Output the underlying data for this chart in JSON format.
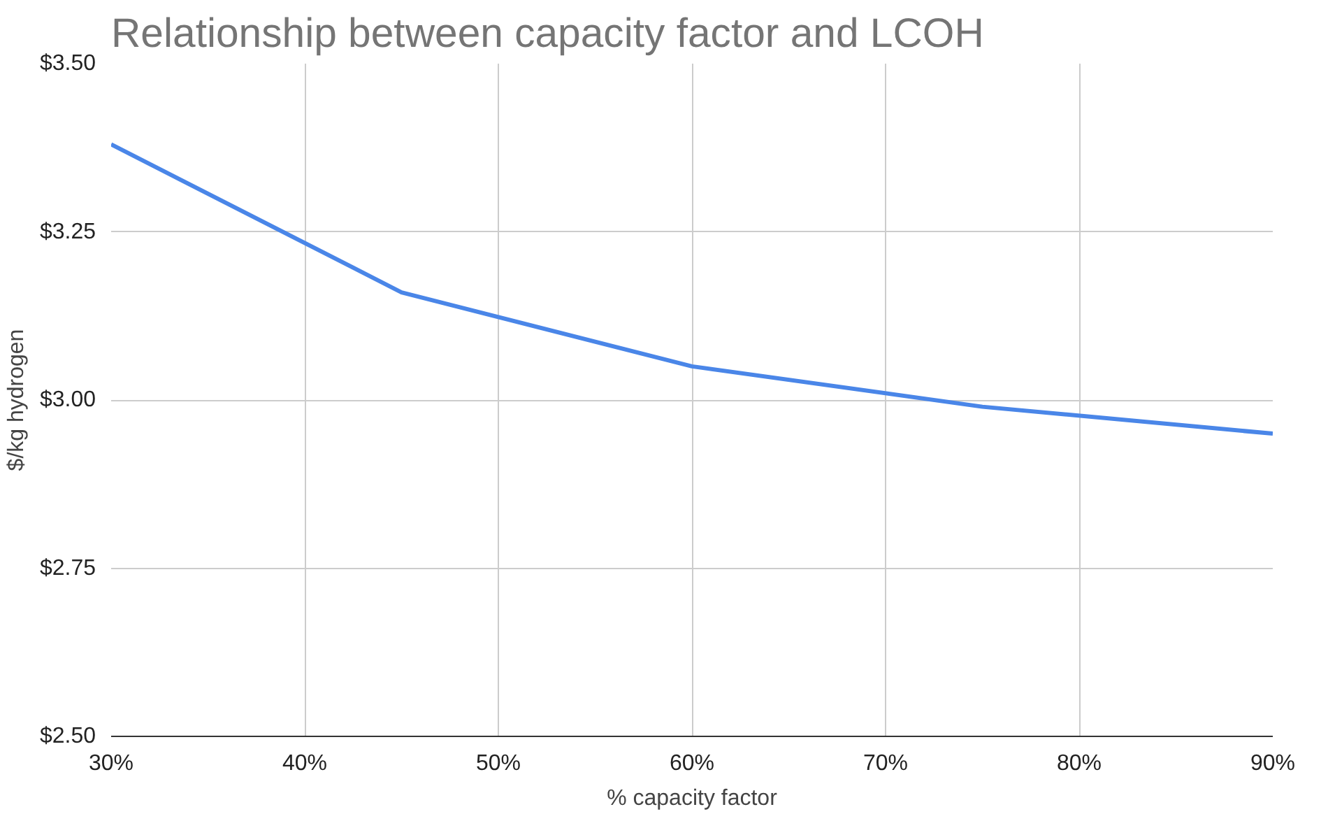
{
  "chart_data": {
    "type": "line",
    "title": "Relationship between capacity factor and LCOH",
    "xlabel": "% capacity factor",
    "ylabel": "$/kg hydrogen",
    "x": [
      30,
      45,
      60,
      75,
      90
    ],
    "series": [
      {
        "color": "#4a86e8",
        "values": [
          3.38,
          3.16,
          3.05,
          2.99,
          2.95
        ]
      }
    ],
    "xlim": [
      30,
      90
    ],
    "xticks": [
      {
        "value": 30,
        "label": "30%"
      },
      {
        "value": 40,
        "label": "40%"
      },
      {
        "value": 50,
        "label": "50%"
      },
      {
        "value": 60,
        "label": "60%"
      },
      {
        "value": 70,
        "label": "70%"
      },
      {
        "value": 80,
        "label": "80%"
      },
      {
        "value": 90,
        "label": "90%"
      }
    ],
    "ylim": [
      2.5,
      3.5
    ],
    "yticks": [
      {
        "value": 2.5,
        "label": "$2.50"
      },
      {
        "value": 2.75,
        "label": "$2.75"
      },
      {
        "value": 3.0,
        "label": "$3.00"
      },
      {
        "value": 3.25,
        "label": "$3.25"
      },
      {
        "value": 3.5,
        "label": "$3.50"
      }
    ],
    "grid": true,
    "marker": "none",
    "line_style": "solid"
  }
}
